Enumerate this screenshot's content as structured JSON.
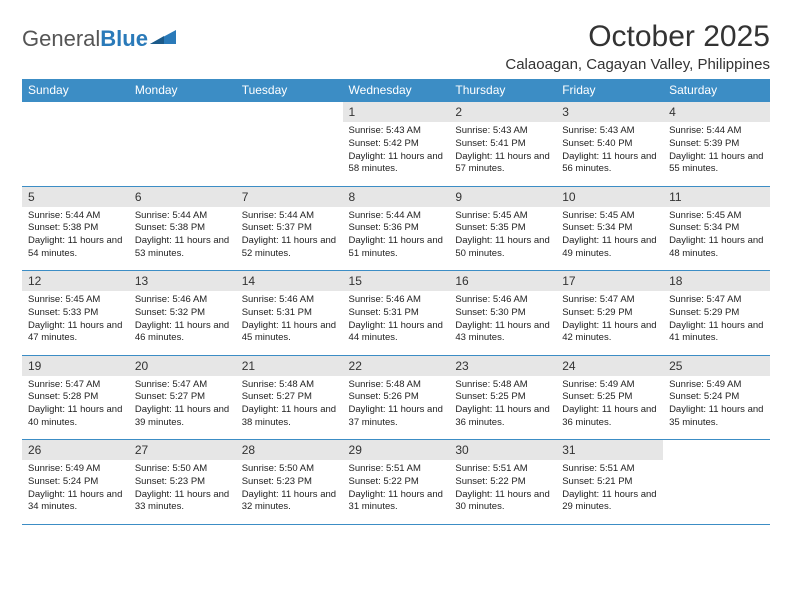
{
  "logo": {
    "text1": "General",
    "text2": "Blue"
  },
  "title": "October 2025",
  "location": "Calaoagan, Cagayan Valley, Philippines",
  "colors": {
    "header_bg": "#3c8dc5",
    "daynum_bg": "#e6e6e6",
    "border": "#3c8dc5"
  },
  "weekdays": [
    "Sunday",
    "Monday",
    "Tuesday",
    "Wednesday",
    "Thursday",
    "Friday",
    "Saturday"
  ],
  "weeks": [
    {
      "days": [
        {
          "n": "",
          "sr": "",
          "ss": "",
          "dl": ""
        },
        {
          "n": "",
          "sr": "",
          "ss": "",
          "dl": ""
        },
        {
          "n": "",
          "sr": "",
          "ss": "",
          "dl": ""
        },
        {
          "n": "1",
          "sr": "5:43 AM",
          "ss": "5:42 PM",
          "dl": "11 hours and 58 minutes."
        },
        {
          "n": "2",
          "sr": "5:43 AM",
          "ss": "5:41 PM",
          "dl": "11 hours and 57 minutes."
        },
        {
          "n": "3",
          "sr": "5:43 AM",
          "ss": "5:40 PM",
          "dl": "11 hours and 56 minutes."
        },
        {
          "n": "4",
          "sr": "5:44 AM",
          "ss": "5:39 PM",
          "dl": "11 hours and 55 minutes."
        }
      ]
    },
    {
      "days": [
        {
          "n": "5",
          "sr": "5:44 AM",
          "ss": "5:38 PM",
          "dl": "11 hours and 54 minutes."
        },
        {
          "n": "6",
          "sr": "5:44 AM",
          "ss": "5:38 PM",
          "dl": "11 hours and 53 minutes."
        },
        {
          "n": "7",
          "sr": "5:44 AM",
          "ss": "5:37 PM",
          "dl": "11 hours and 52 minutes."
        },
        {
          "n": "8",
          "sr": "5:44 AM",
          "ss": "5:36 PM",
          "dl": "11 hours and 51 minutes."
        },
        {
          "n": "9",
          "sr": "5:45 AM",
          "ss": "5:35 PM",
          "dl": "11 hours and 50 minutes."
        },
        {
          "n": "10",
          "sr": "5:45 AM",
          "ss": "5:34 PM",
          "dl": "11 hours and 49 minutes."
        },
        {
          "n": "11",
          "sr": "5:45 AM",
          "ss": "5:34 PM",
          "dl": "11 hours and 48 minutes."
        }
      ]
    },
    {
      "days": [
        {
          "n": "12",
          "sr": "5:45 AM",
          "ss": "5:33 PM",
          "dl": "11 hours and 47 minutes."
        },
        {
          "n": "13",
          "sr": "5:46 AM",
          "ss": "5:32 PM",
          "dl": "11 hours and 46 minutes."
        },
        {
          "n": "14",
          "sr": "5:46 AM",
          "ss": "5:31 PM",
          "dl": "11 hours and 45 minutes."
        },
        {
          "n": "15",
          "sr": "5:46 AM",
          "ss": "5:31 PM",
          "dl": "11 hours and 44 minutes."
        },
        {
          "n": "16",
          "sr": "5:46 AM",
          "ss": "5:30 PM",
          "dl": "11 hours and 43 minutes."
        },
        {
          "n": "17",
          "sr": "5:47 AM",
          "ss": "5:29 PM",
          "dl": "11 hours and 42 minutes."
        },
        {
          "n": "18",
          "sr": "5:47 AM",
          "ss": "5:29 PM",
          "dl": "11 hours and 41 minutes."
        }
      ]
    },
    {
      "days": [
        {
          "n": "19",
          "sr": "5:47 AM",
          "ss": "5:28 PM",
          "dl": "11 hours and 40 minutes."
        },
        {
          "n": "20",
          "sr": "5:47 AM",
          "ss": "5:27 PM",
          "dl": "11 hours and 39 minutes."
        },
        {
          "n": "21",
          "sr": "5:48 AM",
          "ss": "5:27 PM",
          "dl": "11 hours and 38 minutes."
        },
        {
          "n": "22",
          "sr": "5:48 AM",
          "ss": "5:26 PM",
          "dl": "11 hours and 37 minutes."
        },
        {
          "n": "23",
          "sr": "5:48 AM",
          "ss": "5:25 PM",
          "dl": "11 hours and 36 minutes."
        },
        {
          "n": "24",
          "sr": "5:49 AM",
          "ss": "5:25 PM",
          "dl": "11 hours and 36 minutes."
        },
        {
          "n": "25",
          "sr": "5:49 AM",
          "ss": "5:24 PM",
          "dl": "11 hours and 35 minutes."
        }
      ]
    },
    {
      "days": [
        {
          "n": "26",
          "sr": "5:49 AM",
          "ss": "5:24 PM",
          "dl": "11 hours and 34 minutes."
        },
        {
          "n": "27",
          "sr": "5:50 AM",
          "ss": "5:23 PM",
          "dl": "11 hours and 33 minutes."
        },
        {
          "n": "28",
          "sr": "5:50 AM",
          "ss": "5:23 PM",
          "dl": "11 hours and 32 minutes."
        },
        {
          "n": "29",
          "sr": "5:51 AM",
          "ss": "5:22 PM",
          "dl": "11 hours and 31 minutes."
        },
        {
          "n": "30",
          "sr": "5:51 AM",
          "ss": "5:22 PM",
          "dl": "11 hours and 30 minutes."
        },
        {
          "n": "31",
          "sr": "5:51 AM",
          "ss": "5:21 PM",
          "dl": "11 hours and 29 minutes."
        },
        {
          "n": "",
          "sr": "",
          "ss": "",
          "dl": ""
        }
      ]
    }
  ],
  "labels": {
    "sunrise": "Sunrise: ",
    "sunset": "Sunset: ",
    "daylight": "Daylight: "
  }
}
